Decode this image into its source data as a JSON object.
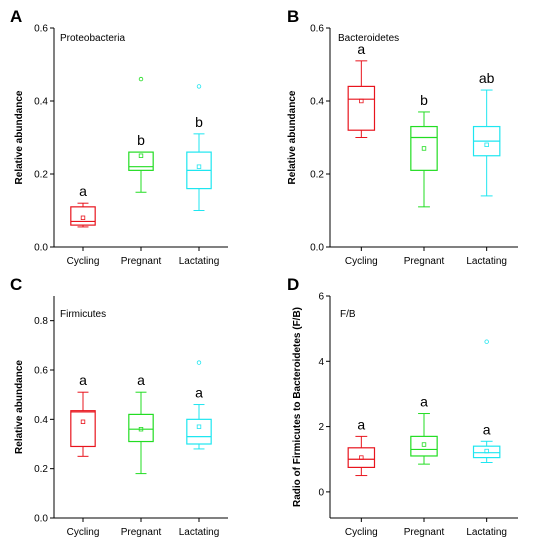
{
  "chart_data": [
    {
      "type": "box",
      "panel": "A",
      "title": "Proteobacteria",
      "ylabel": "Relative abundance",
      "ylim": [
        0.0,
        0.6
      ],
      "yticks": [
        0.0,
        0.2,
        0.4,
        0.6
      ],
      "ytick_labels": [
        "0.0",
        "0.2",
        "0.4",
        "0.6"
      ],
      "categories": [
        "Cycling",
        "Pregnant",
        "Lactating"
      ],
      "colors": [
        "#e8141d",
        "#22dd22",
        "#1ee6f0"
      ],
      "boxes": [
        {
          "whisker_low": 0.055,
          "q1": 0.06,
          "median": 0.07,
          "q3": 0.11,
          "whisker_high": 0.12,
          "mean": 0.08,
          "outliers": [],
          "sig": "a"
        },
        {
          "whisker_low": 0.15,
          "q1": 0.21,
          "median": 0.22,
          "q3": 0.26,
          "whisker_high": 0.26,
          "mean": 0.25,
          "outliers": [
            0.46
          ],
          "sig": "b"
        },
        {
          "whisker_low": 0.1,
          "q1": 0.16,
          "median": 0.21,
          "q3": 0.26,
          "whisker_high": 0.31,
          "mean": 0.22,
          "outliers": [
            0.44
          ],
          "sig": "b"
        }
      ]
    },
    {
      "type": "box",
      "panel": "B",
      "title": "Bacteroidetes",
      "ylabel": "Relative abundance",
      "ylim": [
        0.0,
        0.6
      ],
      "yticks": [
        0.0,
        0.2,
        0.4,
        0.6
      ],
      "ytick_labels": [
        "0.0",
        "0.2",
        "0.4",
        "0.6"
      ],
      "categories": [
        "Cycling",
        "Pregnant",
        "Lactating"
      ],
      "colors": [
        "#e8141d",
        "#22dd22",
        "#1ee6f0"
      ],
      "boxes": [
        {
          "whisker_low": 0.3,
          "q1": 0.32,
          "median": 0.405,
          "q3": 0.44,
          "whisker_high": 0.51,
          "mean": 0.4,
          "outliers": [],
          "sig": "a"
        },
        {
          "whisker_low": 0.11,
          "q1": 0.21,
          "median": 0.3,
          "q3": 0.33,
          "whisker_high": 0.37,
          "mean": 0.27,
          "outliers": [],
          "sig": "b"
        },
        {
          "whisker_low": 0.14,
          "q1": 0.25,
          "median": 0.29,
          "q3": 0.33,
          "whisker_high": 0.43,
          "mean": 0.28,
          "outliers": [],
          "sig": "ab"
        }
      ]
    },
    {
      "type": "box",
      "panel": "C",
      "title": "Firmicutes",
      "ylabel": "Relative abundance",
      "ylim": [
        0.0,
        0.9
      ],
      "yticks": [
        0.0,
        0.2,
        0.4,
        0.6,
        0.8
      ],
      "ytick_labels": [
        "0.0",
        "0.2",
        "0.4",
        "0.6",
        "0.8"
      ],
      "categories": [
        "Cycling",
        "Pregnant",
        "Lactating"
      ],
      "colors": [
        "#e8141d",
        "#22dd22",
        "#1ee6f0"
      ],
      "boxes": [
        {
          "whisker_low": 0.25,
          "q1": 0.29,
          "median": 0.43,
          "q3": 0.435,
          "whisker_high": 0.51,
          "mean": 0.39,
          "outliers": [],
          "sig": "a"
        },
        {
          "whisker_low": 0.18,
          "q1": 0.31,
          "median": 0.36,
          "q3": 0.42,
          "whisker_high": 0.51,
          "mean": 0.36,
          "outliers": [],
          "sig": "a"
        },
        {
          "whisker_low": 0.28,
          "q1": 0.3,
          "median": 0.33,
          "q3": 0.4,
          "whisker_high": 0.46,
          "mean": 0.37,
          "outliers": [
            0.63
          ],
          "sig": "a"
        }
      ]
    },
    {
      "type": "box",
      "panel": "D",
      "title": "F/B",
      "ylabel": "Radio of Firmicutes to Bacteroidetes (F/B)",
      "ylim": [
        -0.8,
        6.0
      ],
      "yticks": [
        0,
        2,
        4,
        6
      ],
      "ytick_labels": [
        "0",
        "2",
        "4",
        "6"
      ],
      "categories": [
        "Cycling",
        "Pregnant",
        "Lactating"
      ],
      "colors": [
        "#e8141d",
        "#22dd22",
        "#1ee6f0"
      ],
      "boxes": [
        {
          "whisker_low": 0.5,
          "q1": 0.75,
          "median": 1.0,
          "q3": 1.35,
          "whisker_high": 1.7,
          "mean": 1.05,
          "outliers": [],
          "sig": "a"
        },
        {
          "whisker_low": 0.85,
          "q1": 1.1,
          "median": 1.3,
          "q3": 1.7,
          "whisker_high": 2.4,
          "mean": 1.45,
          "outliers": [],
          "sig": "a"
        },
        {
          "whisker_low": 0.9,
          "q1": 1.05,
          "median": 1.2,
          "q3": 1.4,
          "whisker_high": 1.55,
          "mean": 1.25,
          "outliers": [
            4.6
          ],
          "sig": "a"
        }
      ]
    }
  ]
}
